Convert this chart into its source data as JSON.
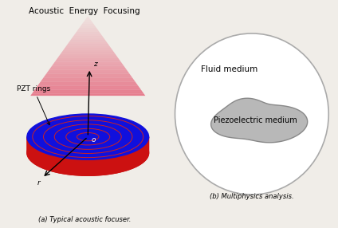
{
  "title_left": "Acoustic  Energy  Focusing",
  "label_pzt": "PZT rings",
  "label_z": "z",
  "label_r": "r",
  "label_o": "o",
  "caption_a": "(a) Typical acoustic focuser.",
  "caption_b": "(b) Multiphysics analysis.",
  "label_fluid": "Fluid medium",
  "label_piezo": "Piezoelectric medium",
  "bg_color": "#f0ede8",
  "disk_blue": "#1010dd",
  "disk_red": "#cc1111",
  "ring_color": "#cc2222",
  "piezo_fill_color": "#b8b8b8",
  "figsize": [
    4.24,
    2.86
  ],
  "dpi": 100
}
